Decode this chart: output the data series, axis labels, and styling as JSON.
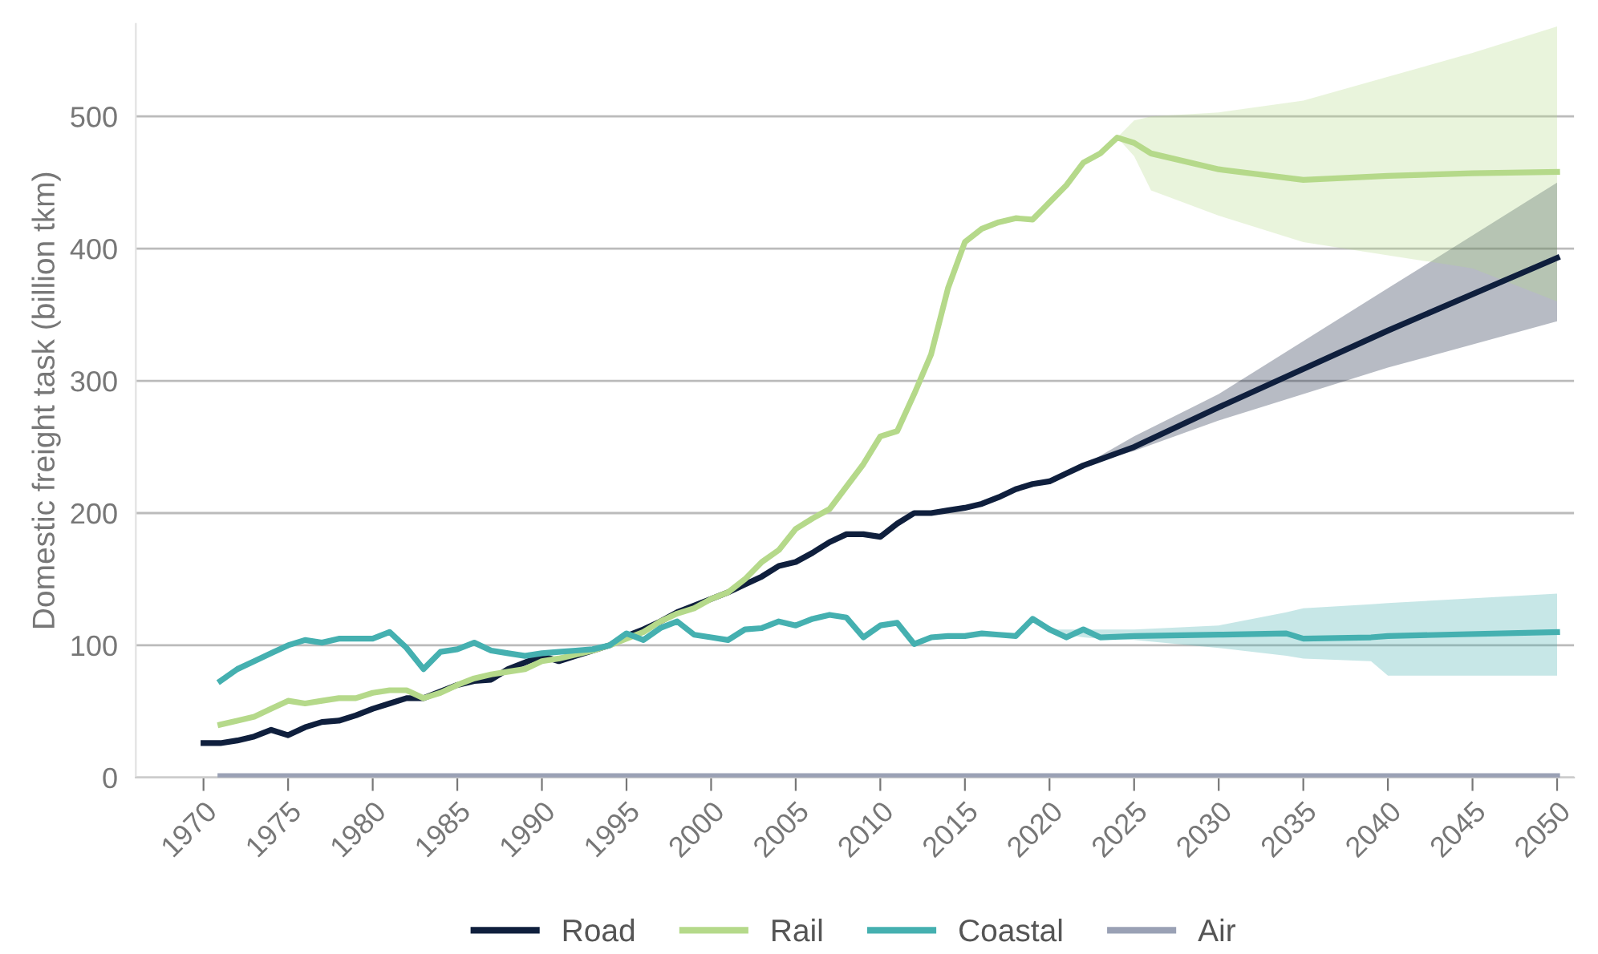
{
  "chart_data": {
    "type": "line",
    "ylabel": "Domestic freight task (billion tkm)",
    "xlim": [
      1966,
      2051
    ],
    "xticks": [
      1970,
      1975,
      1980,
      1985,
      1990,
      1995,
      2000,
      2005,
      2010,
      2015,
      2020,
      2025,
      2030,
      2035,
      2040,
      2045,
      2050
    ],
    "ylim": [
      0,
      570
    ],
    "yticks": [
      0,
      100,
      200,
      300,
      400,
      500
    ],
    "grid": "y",
    "legend": "bottom",
    "line_style": "solid",
    "marker": "none",
    "series": [
      {
        "name": "Road",
        "color": "#0f1f3d",
        "x": [
          1970,
          1971,
          1972,
          1973,
          1974,
          1975,
          1976,
          1977,
          1978,
          1979,
          1980,
          1981,
          1982,
          1983,
          1984,
          1985,
          1986,
          1987,
          1988,
          1989,
          1990,
          1991,
          1992,
          1993,
          1994,
          1995,
          1996,
          1997,
          1998,
          1999,
          2000,
          2001,
          2002,
          2003,
          2004,
          2005,
          2006,
          2007,
          2008,
          2009,
          2010,
          2011,
          2012,
          2013,
          2014,
          2015,
          2016,
          2017,
          2018,
          2019,
          2020,
          2021,
          2022,
          2025,
          2030,
          2040,
          2050
        ],
        "values": [
          26,
          26,
          28,
          31,
          36,
          32,
          38,
          42,
          43,
          47,
          52,
          56,
          60,
          60,
          65,
          70,
          73,
          74,
          82,
          87,
          92,
          88,
          92,
          96,
          100,
          107,
          112,
          118,
          125,
          130,
          135,
          140,
          146,
          152,
          160,
          163,
          170,
          178,
          184,
          184,
          182,
          192,
          200,
          200,
          202,
          204,
          207,
          212,
          218,
          222,
          224,
          230,
          236,
          250,
          280,
          338,
          393
        ],
        "lower": [
          null,
          null,
          null,
          null,
          null,
          null,
          null,
          null,
          null,
          null,
          null,
          null,
          null,
          null,
          null,
          null,
          null,
          null,
          null,
          null,
          null,
          null,
          null,
          null,
          null,
          null,
          null,
          null,
          null,
          null,
          null,
          null,
          null,
          null,
          null,
          null,
          null,
          null,
          null,
          null,
          null,
          null,
          null,
          null,
          null,
          null,
          null,
          null,
          null,
          null,
          null,
          null,
          236,
          247,
          270,
          310,
          345
        ],
        "upper": [
          null,
          null,
          null,
          null,
          null,
          null,
          null,
          null,
          null,
          null,
          null,
          null,
          null,
          null,
          null,
          null,
          null,
          null,
          null,
          null,
          null,
          null,
          null,
          null,
          null,
          null,
          null,
          null,
          null,
          null,
          null,
          null,
          null,
          null,
          null,
          null,
          null,
          null,
          null,
          null,
          null,
          null,
          null,
          null,
          null,
          null,
          null,
          null,
          null,
          null,
          null,
          null,
          236,
          258,
          290,
          370,
          450
        ]
      },
      {
        "name": "Rail",
        "color": "#b5d98a",
        "x": [
          1971,
          1972,
          1973,
          1974,
          1975,
          1976,
          1977,
          1978,
          1979,
          1980,
          1981,
          1982,
          1983,
          1984,
          1985,
          1986,
          1987,
          1988,
          1989,
          1990,
          1991,
          1992,
          1993,
          1994,
          1995,
          1996,
          1997,
          1998,
          1999,
          2000,
          2001,
          2002,
          2003,
          2004,
          2005,
          2006,
          2007,
          2008,
          2009,
          2010,
          2011,
          2012,
          2013,
          2014,
          2015,
          2016,
          2017,
          2018,
          2019,
          2020,
          2021,
          2022,
          2023,
          2024,
          2025,
          2026,
          2030,
          2035,
          2040,
          2045,
          2050
        ],
        "values": [
          40,
          43,
          46,
          52,
          58,
          56,
          58,
          60,
          60,
          64,
          66,
          66,
          60,
          64,
          70,
          75,
          78,
          80,
          82,
          88,
          90,
          93,
          96,
          100,
          105,
          110,
          118,
          124,
          128,
          135,
          140,
          150,
          163,
          172,
          188,
          196,
          203,
          220,
          237,
          258,
          262,
          290,
          320,
          370,
          405,
          415,
          420,
          423,
          422,
          435,
          448,
          465,
          472,
          484,
          480,
          472,
          460,
          452,
          455,
          457,
          458
        ],
        "lower": [
          null,
          null,
          null,
          null,
          null,
          null,
          null,
          null,
          null,
          null,
          null,
          null,
          null,
          null,
          null,
          null,
          null,
          null,
          null,
          null,
          null,
          null,
          null,
          null,
          null,
          null,
          null,
          null,
          null,
          null,
          null,
          null,
          null,
          null,
          null,
          null,
          null,
          null,
          null,
          null,
          null,
          null,
          null,
          null,
          null,
          null,
          null,
          null,
          null,
          null,
          null,
          null,
          null,
          484,
          470,
          444,
          425,
          405,
          395,
          385,
          360
        ],
        "upper": [
          null,
          null,
          null,
          null,
          null,
          null,
          null,
          null,
          null,
          null,
          null,
          null,
          null,
          null,
          null,
          null,
          null,
          null,
          null,
          null,
          null,
          null,
          null,
          null,
          null,
          null,
          null,
          null,
          null,
          null,
          null,
          null,
          null,
          null,
          null,
          null,
          null,
          null,
          null,
          null,
          null,
          null,
          null,
          null,
          null,
          null,
          null,
          null,
          null,
          null,
          null,
          null,
          null,
          484,
          497,
          500,
          503,
          512,
          530,
          548,
          568
        ]
      },
      {
        "name": "Coastal",
        "color": "#45b0b0",
        "x": [
          1971,
          1972,
          1973,
          1974,
          1975,
          1976,
          1977,
          1978,
          1979,
          1980,
          1981,
          1982,
          1983,
          1984,
          1985,
          1986,
          1987,
          1988,
          1989,
          1990,
          1991,
          1992,
          1993,
          1994,
          1995,
          1996,
          1997,
          1998,
          1999,
          2000,
          2001,
          2002,
          2003,
          2004,
          2005,
          2006,
          2007,
          2008,
          2009,
          2010,
          2011,
          2012,
          2013,
          2014,
          2015,
          2016,
          2017,
          2018,
          2019,
          2020,
          2021,
          2022,
          2023,
          2025,
          2030,
          2034,
          2035,
          2039,
          2040,
          2050
        ],
        "values": [
          73,
          82,
          88,
          94,
          100,
          104,
          102,
          105,
          105,
          105,
          110,
          98,
          82,
          95,
          97,
          102,
          96,
          94,
          92,
          94,
          95,
          96,
          97,
          100,
          109,
          104,
          113,
          118,
          108,
          106,
          104,
          112,
          113,
          118,
          115,
          120,
          123,
          121,
          106,
          115,
          117,
          101,
          106,
          107,
          107,
          109,
          108,
          107,
          120,
          112,
          106,
          112,
          106,
          107,
          108,
          109,
          105,
          106,
          107,
          110
        ],
        "lower": [
          null,
          null,
          null,
          null,
          null,
          null,
          null,
          null,
          null,
          null,
          null,
          null,
          null,
          null,
          null,
          null,
          null,
          null,
          null,
          null,
          null,
          null,
          null,
          null,
          null,
          null,
          null,
          null,
          null,
          null,
          null,
          null,
          null,
          null,
          null,
          null,
          null,
          null,
          null,
          null,
          null,
          null,
          null,
          null,
          null,
          null,
          null,
          null,
          null,
          112,
          108,
          106,
          105,
          104,
          98,
          92,
          90,
          88,
          77,
          77
        ],
        "upper": [
          null,
          null,
          null,
          null,
          null,
          null,
          null,
          null,
          null,
          null,
          null,
          null,
          null,
          null,
          null,
          null,
          null,
          null,
          null,
          null,
          null,
          null,
          null,
          null,
          null,
          null,
          null,
          null,
          null,
          null,
          null,
          null,
          null,
          null,
          null,
          null,
          null,
          null,
          null,
          null,
          null,
          null,
          null,
          null,
          null,
          null,
          null,
          null,
          null,
          112,
          112,
          112,
          112,
          112,
          115,
          125,
          128,
          131,
          132,
          139
        ]
      },
      {
        "name": "Air",
        "color": "#9aa1b5",
        "x": [
          1971,
          2000,
          2020,
          2050
        ],
        "values": [
          1,
          1,
          1,
          1
        ]
      }
    ]
  }
}
